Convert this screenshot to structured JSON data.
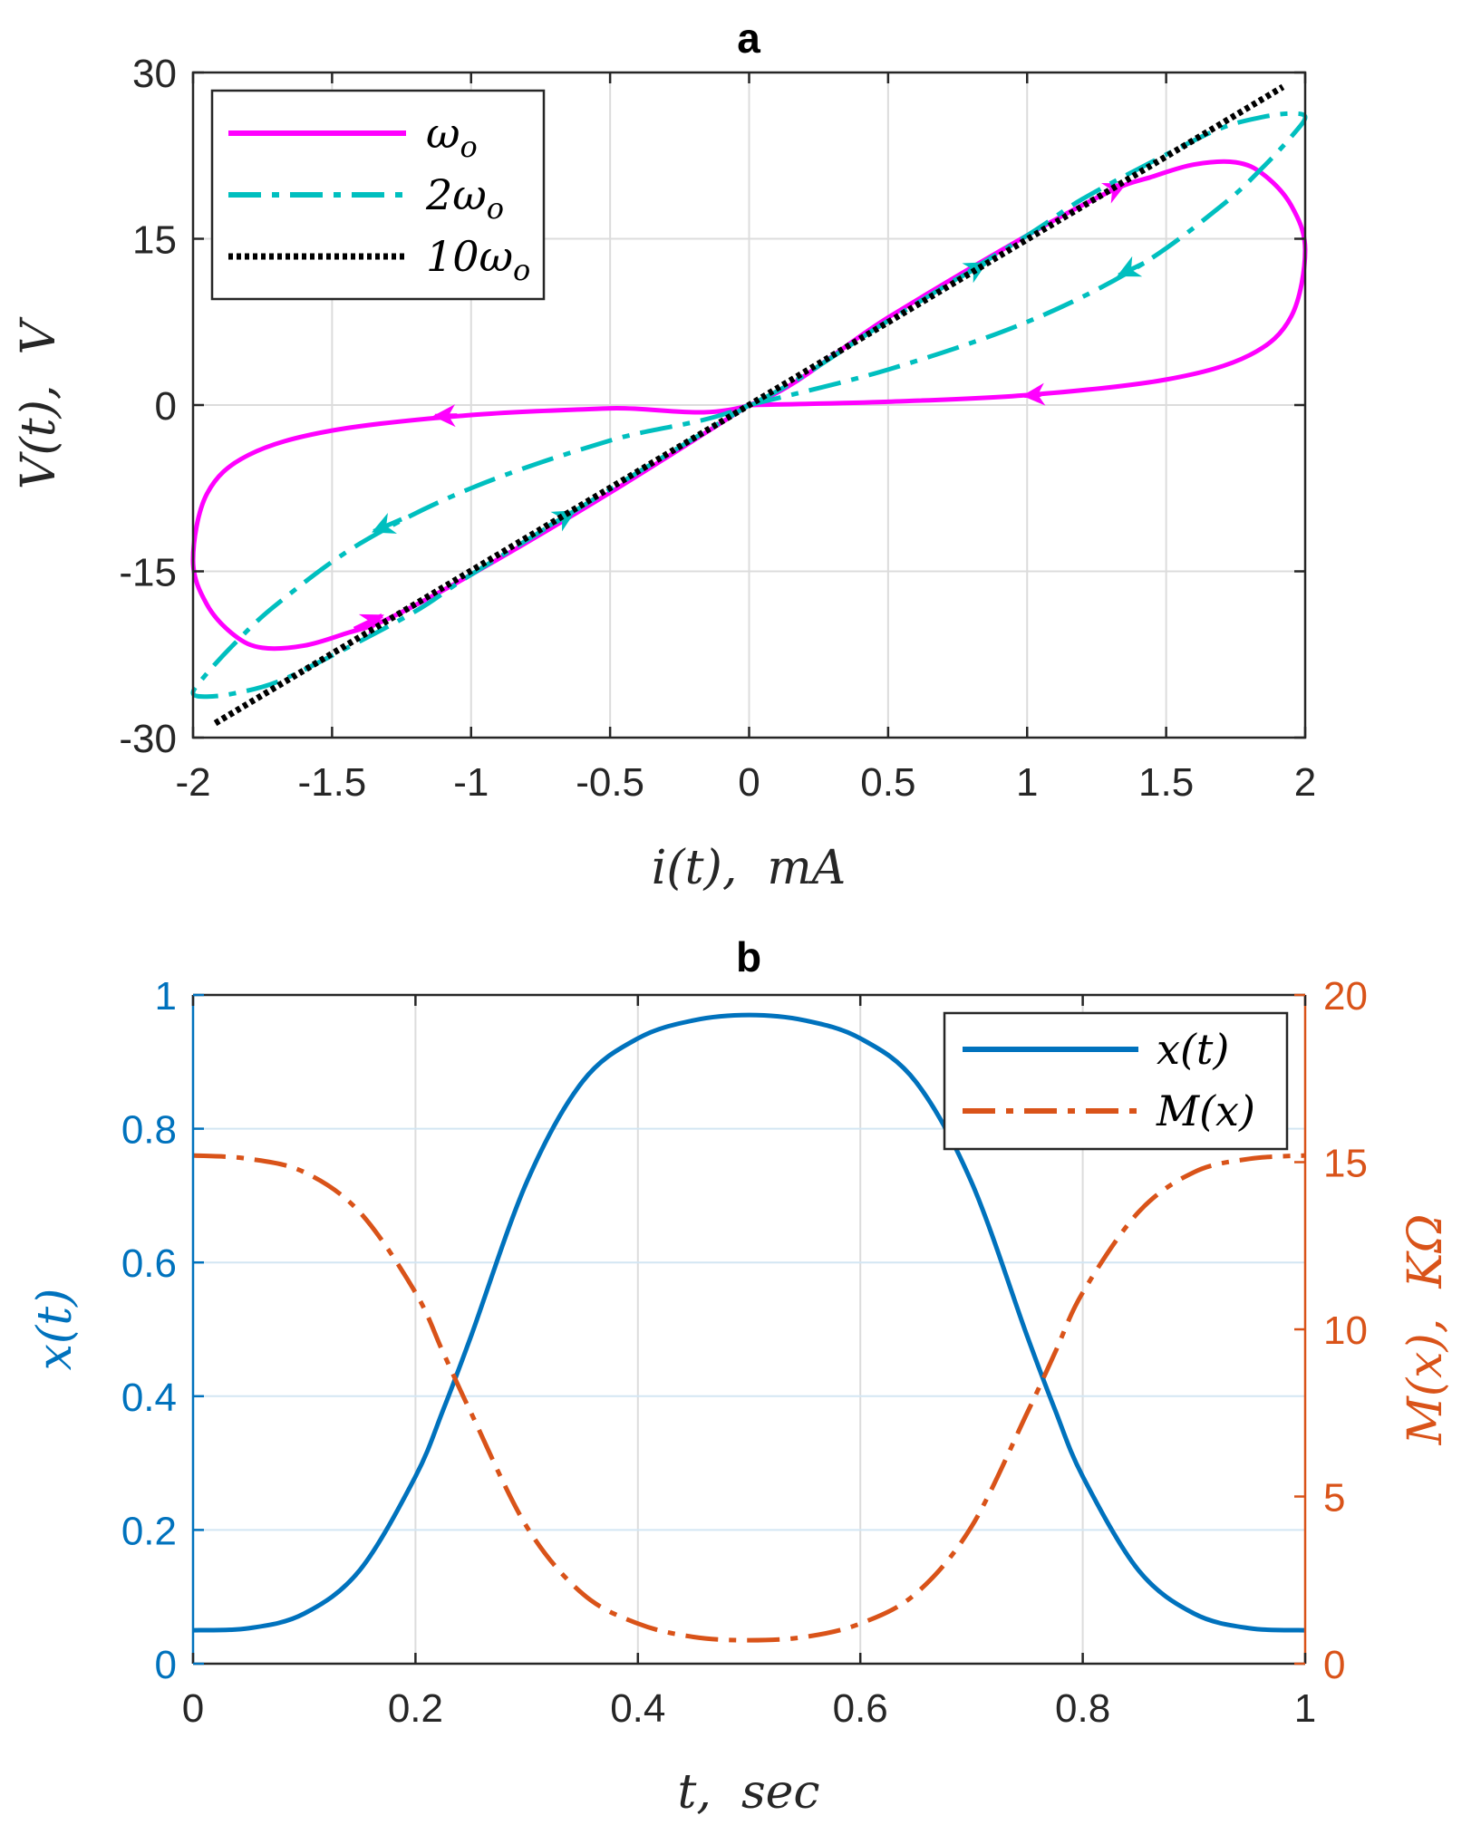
{
  "figure": {
    "width": 1634,
    "height": 2014
  },
  "chart_data": [
    {
      "id": "a",
      "type": "line",
      "title": "a",
      "xlabel": "i(t),  mA",
      "ylabel": "V(t),  V",
      "xlim": [
        -2,
        2
      ],
      "ylim": [
        -30,
        30
      ],
      "xticks": [
        -2,
        -1.5,
        -1,
        -0.5,
        0,
        0.5,
        1,
        1.5,
        2
      ],
      "xtick_labels": [
        "-2",
        "-1.5",
        "-1",
        "-0.5",
        "0",
        "0.5",
        "1",
        "1.5",
        "2"
      ],
      "yticks": [
        -30,
        -15,
        0,
        15,
        30
      ],
      "ytick_labels": [
        "-30",
        "-15",
        "0",
        "15",
        "30"
      ],
      "grid": true,
      "legend": "top-left",
      "series": [
        {
          "name": "ω_o",
          "label_main": "ω",
          "label_sub": "o",
          "color": "#FF00FF",
          "style": "solid",
          "closed": true,
          "points": [
            [
              0,
              0
            ],
            [
              0.5,
              0.3
            ],
            [
              1.0,
              0.9
            ],
            [
              1.5,
              2.3
            ],
            [
              1.8,
              4.5
            ],
            [
              1.95,
              8.0
            ],
            [
              2.0,
              14.0
            ],
            [
              1.95,
              18.0
            ],
            [
              1.85,
              20.8
            ],
            [
              1.75,
              21.9
            ],
            [
              1.6,
              21.7
            ],
            [
              1.45,
              20.6
            ],
            [
              1.3,
              19.3
            ],
            [
              1.0,
              15.3
            ],
            [
              0.5,
              7.9
            ],
            [
              0,
              0
            ],
            [
              -0.5,
              -0.3
            ],
            [
              -1.0,
              -0.9
            ],
            [
              -1.5,
              -2.3
            ],
            [
              -1.8,
              -4.5
            ],
            [
              -1.95,
              -8.0
            ],
            [
              -2.0,
              -14.0
            ],
            [
              -1.95,
              -18.0
            ],
            [
              -1.85,
              -20.8
            ],
            [
              -1.75,
              -21.9
            ],
            [
              -1.6,
              -21.7
            ],
            [
              -1.45,
              -20.6
            ],
            [
              -1.3,
              -19.3
            ],
            [
              -1.0,
              -15.3
            ],
            [
              -0.5,
              -7.9
            ],
            [
              0,
              0
            ]
          ],
          "arrows": [
            [
              [
                1.05,
                0.95
              ],
              [
                0.99,
                0.85
              ]
            ],
            [
              [
                -1.05,
                -0.95
              ],
              [
                -1.13,
                -1.0
              ]
            ],
            [
              [
                -1.42,
                -20.2
              ],
              [
                -1.32,
                -19.0
              ]
            ],
            [
              [
                1.25,
                18.7
              ],
              [
                1.35,
                19.9
              ]
            ]
          ]
        },
        {
          "name": "2ω_o",
          "label_main": "2ω",
          "label_sub": "o",
          "color": "#00BFBF",
          "style": "dashdot",
          "closed": true,
          "points": [
            [
              0,
              0
            ],
            [
              0.5,
              3.2
            ],
            [
              1.0,
              7.5
            ],
            [
              1.4,
              12.5
            ],
            [
              1.7,
              18.0
            ],
            [
              1.85,
              21.5
            ],
            [
              1.96,
              24.5
            ],
            [
              2.0,
              26.0
            ],
            [
              1.95,
              26.3
            ],
            [
              1.85,
              26.0
            ],
            [
              1.7,
              25.0
            ],
            [
              1.5,
              22.6
            ],
            [
              1.2,
              18.6
            ],
            [
              1.0,
              15.3
            ],
            [
              0.5,
              7.6
            ],
            [
              0,
              0
            ],
            [
              -0.5,
              -3.2
            ],
            [
              -1.0,
              -7.5
            ],
            [
              -1.4,
              -12.5
            ],
            [
              -1.7,
              -18.0
            ],
            [
              -1.85,
              -21.5
            ],
            [
              -1.96,
              -24.5
            ],
            [
              -2.0,
              -26.0
            ],
            [
              -1.95,
              -26.3
            ],
            [
              -1.85,
              -26.0
            ],
            [
              -1.7,
              -25.0
            ],
            [
              -1.5,
              -22.6
            ],
            [
              -1.2,
              -18.6
            ],
            [
              -1.0,
              -15.3
            ],
            [
              -0.5,
              -7.6
            ],
            [
              0,
              0
            ]
          ],
          "arrows": [
            [
              [
                1.42,
                12.8
              ],
              [
                1.33,
                11.7
              ]
            ],
            [
              [
                -1.25,
                -10.3
              ],
              [
                -1.35,
                -11.4
              ]
            ],
            [
              [
                -0.72,
                -10.9
              ],
              [
                -0.63,
                -9.6
              ]
            ],
            [
              [
                0.75,
                11.4
              ],
              [
                0.85,
                12.8
              ]
            ]
          ]
        },
        {
          "name": "10ω_o",
          "label_main": "10ω",
          "label_sub": "o",
          "color": "#000000",
          "style": "dotted",
          "closed": false,
          "points": [
            [
              -1.92,
              -28.7
            ],
            [
              1.92,
              28.7
            ]
          ],
          "arrows": []
        }
      ]
    },
    {
      "id": "b",
      "type": "line",
      "title": "b",
      "xlabel": "t,  sec",
      "ylabel_left": "x(t)",
      "ylabel_right": "M(x),  KΩ",
      "xlim": [
        0,
        1
      ],
      "ylim_left": [
        0,
        1
      ],
      "ylim_right": [
        0,
        20
      ],
      "xticks": [
        0,
        0.2,
        0.4,
        0.6,
        0.8,
        1
      ],
      "xtick_labels": [
        "0",
        "0.2",
        "0.4",
        "0.6",
        "0.8",
        "1"
      ],
      "yticks_left": [
        0,
        0.2,
        0.4,
        0.6,
        0.8,
        1
      ],
      "ytick_labels_left": [
        "0",
        "0.2",
        "0.4",
        "0.6",
        "0.8",
        "1"
      ],
      "yticks_right": [
        0,
        5,
        10,
        15,
        20
      ],
      "ytick_labels_right": [
        "0",
        "5",
        "10",
        "15",
        "20"
      ],
      "grid": true,
      "legend": "top-right",
      "left_axis_color": "#0072BD",
      "right_axis_color": "#D95319",
      "series": [
        {
          "name": "x(t)",
          "axis": "left",
          "color": "#0072BD",
          "style": "solid",
          "points": [
            [
              0,
              0.05
            ],
            [
              0.05,
              0.053
            ],
            [
              0.1,
              0.075
            ],
            [
              0.15,
              0.14
            ],
            [
              0.2,
              0.28
            ],
            [
              0.225,
              0.38
            ],
            [
              0.25,
              0.49
            ],
            [
              0.3,
              0.72
            ],
            [
              0.35,
              0.87
            ],
            [
              0.4,
              0.935
            ],
            [
              0.45,
              0.962
            ],
            [
              0.5,
              0.97
            ],
            [
              0.55,
              0.962
            ],
            [
              0.6,
              0.935
            ],
            [
              0.65,
              0.87
            ],
            [
              0.7,
              0.72
            ],
            [
              0.75,
              0.49
            ],
            [
              0.775,
              0.38
            ],
            [
              0.8,
              0.28
            ],
            [
              0.85,
              0.14
            ],
            [
              0.9,
              0.075
            ],
            [
              0.95,
              0.053
            ],
            [
              1,
              0.05
            ]
          ]
        },
        {
          "name": "M(x)",
          "axis": "right",
          "color": "#D95319",
          "style": "dashdot",
          "points": [
            [
              0,
              15.2
            ],
            [
              0.05,
              15.1
            ],
            [
              0.1,
              14.7
            ],
            [
              0.15,
              13.5
            ],
            [
              0.2,
              11.1
            ],
            [
              0.225,
              9.3
            ],
            [
              0.25,
              7.5
            ],
            [
              0.3,
              4.1
            ],
            [
              0.35,
              2.1
            ],
            [
              0.4,
              1.2
            ],
            [
              0.45,
              0.8
            ],
            [
              0.5,
              0.7
            ],
            [
              0.55,
              0.8
            ],
            [
              0.6,
              1.2
            ],
            [
              0.65,
              2.1
            ],
            [
              0.7,
              4.1
            ],
            [
              0.75,
              7.5
            ],
            [
              0.775,
              9.3
            ],
            [
              0.8,
              11.1
            ],
            [
              0.85,
              13.5
            ],
            [
              0.9,
              14.7
            ],
            [
              0.95,
              15.1
            ],
            [
              1,
              15.2
            ]
          ]
        }
      ]
    }
  ]
}
